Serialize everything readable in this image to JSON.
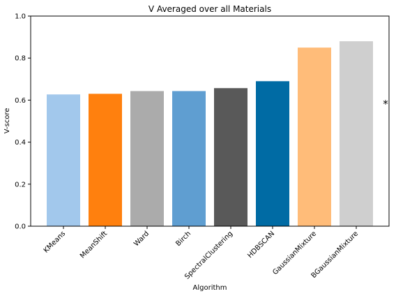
{
  "chart_data": {
    "type": "bar",
    "title": "V Averaged over all Materials",
    "xlabel": "Algorithm",
    "ylabel": "V-score",
    "ylim": [
      0,
      1.0
    ],
    "yticks": [
      "0.0",
      "0.2",
      "0.4",
      "0.6",
      "0.8",
      "1.0"
    ],
    "ytick_values": [
      0,
      0.2,
      0.4,
      0.6,
      0.8,
      1.0
    ],
    "categories": [
      "KMeans",
      "MeanShift",
      "Ward",
      "Birch",
      "SpectralClustering",
      "HDBSCAN",
      "GaussianMixture",
      "BGaussianMixture"
    ],
    "values": [
      0.627,
      0.63,
      0.643,
      0.643,
      0.657,
      0.69,
      0.85,
      0.88
    ],
    "colors": [
      "#a2c8ec",
      "#ff800e",
      "#ababab",
      "#5f9ed1",
      "#595959",
      "#006ba4",
      "#ffbc79",
      "#cfcfcf"
    ],
    "grid": false,
    "annotation": "*"
  }
}
